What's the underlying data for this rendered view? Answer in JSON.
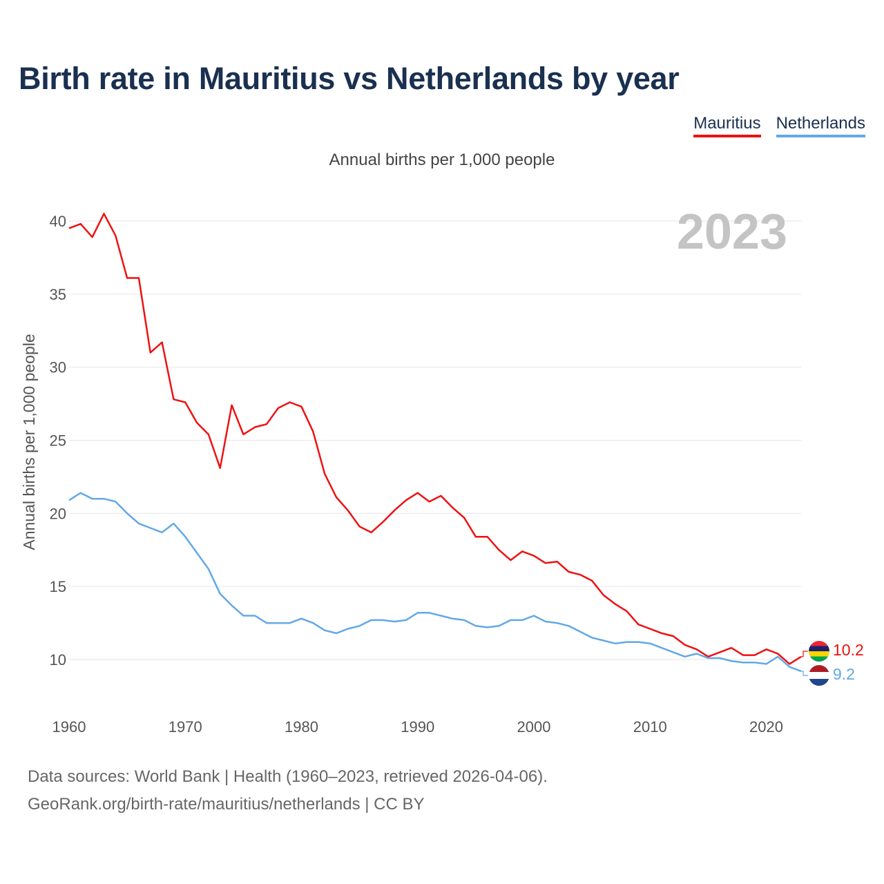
{
  "title": "Birth rate in Mauritius vs Netherlands by year",
  "legend": [
    {
      "name": "Mauritius",
      "color": "#ee1111"
    },
    {
      "name": "Netherlands",
      "color": "#62a8e8"
    }
  ],
  "subtitle": "Annual births per 1,000 people",
  "year_overlay": "2023",
  "footer": {
    "line1": "Data sources: World Bank | Health (1960–2023, retrieved 2026-04-06).",
    "line2": "GeoRank.org/birth-rate/mauritius/netherlands | CC BY"
  },
  "chart_data": {
    "type": "line",
    "title": "Birth rate in Mauritius vs Netherlands by year",
    "xlabel": "",
    "ylabel": "Annual births per 1,000 people",
    "x": [
      1960,
      1961,
      1962,
      1963,
      1964,
      1965,
      1966,
      1967,
      1968,
      1969,
      1970,
      1971,
      1972,
      1973,
      1974,
      1975,
      1976,
      1977,
      1978,
      1979,
      1980,
      1981,
      1982,
      1983,
      1984,
      1985,
      1986,
      1987,
      1988,
      1989,
      1990,
      1991,
      1992,
      1993,
      1994,
      1995,
      1996,
      1997,
      1998,
      1999,
      2000,
      2001,
      2002,
      2003,
      2004,
      2005,
      2006,
      2007,
      2008,
      2009,
      2010,
      2011,
      2012,
      2013,
      2014,
      2015,
      2016,
      2017,
      2018,
      2019,
      2020,
      2021,
      2022,
      2023
    ],
    "xticks": [
      1960,
      1970,
      1980,
      1990,
      2000,
      2010,
      2020
    ],
    "yticks": [
      10,
      15,
      20,
      25,
      30,
      35,
      40
    ],
    "xlim": [
      1960,
      2023
    ],
    "ylim": [
      7,
      42.5
    ],
    "grid": true,
    "series": [
      {
        "name": "Mauritius",
        "color": "#ee1111",
        "end_label": "10.2",
        "values": [
          39.5,
          39.8,
          38.9,
          40.5,
          39.0,
          36.1,
          36.1,
          31.0,
          31.7,
          27.8,
          27.6,
          26.2,
          25.4,
          23.1,
          27.4,
          25.4,
          25.9,
          26.1,
          27.2,
          27.6,
          27.3,
          25.6,
          22.7,
          21.1,
          20.2,
          19.1,
          18.7,
          19.4,
          20.2,
          20.9,
          21.4,
          20.8,
          21.2,
          20.4,
          19.7,
          18.4,
          18.4,
          17.5,
          16.8,
          17.4,
          17.1,
          16.6,
          16.7,
          16.0,
          15.8,
          15.4,
          14.4,
          13.8,
          13.3,
          12.4,
          12.1,
          11.8,
          11.6,
          11.0,
          10.7,
          10.2,
          10.5,
          10.8,
          10.3,
          10.3,
          10.7,
          10.4,
          9.7,
          10.2
        ]
      },
      {
        "name": "Netherlands",
        "color": "#62a8e8",
        "end_label": "9.2",
        "values": [
          20.9,
          21.4,
          21.0,
          21.0,
          20.8,
          20.0,
          19.3,
          19.0,
          18.7,
          19.3,
          18.4,
          17.3,
          16.2,
          14.5,
          13.7,
          13.0,
          13.0,
          12.5,
          12.5,
          12.5,
          12.8,
          12.5,
          12.0,
          11.8,
          12.1,
          12.3,
          12.7,
          12.7,
          12.6,
          12.7,
          13.2,
          13.2,
          13.0,
          12.8,
          12.7,
          12.3,
          12.2,
          12.3,
          12.7,
          12.7,
          13.0,
          12.6,
          12.5,
          12.3,
          11.9,
          11.5,
          11.3,
          11.1,
          11.2,
          11.2,
          11.1,
          10.8,
          10.5,
          10.2,
          10.4,
          10.1,
          10.1,
          9.9,
          9.8,
          9.8,
          9.7,
          10.2,
          9.5,
          9.2
        ]
      }
    ]
  }
}
